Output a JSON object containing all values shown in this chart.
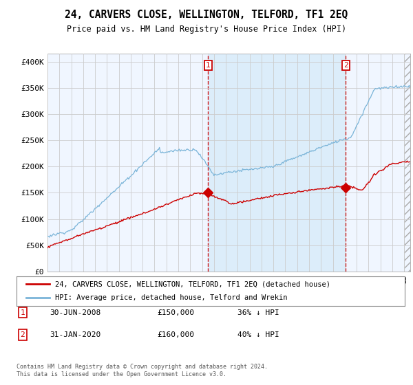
{
  "title": "24, CARVERS CLOSE, WELLINGTON, TELFORD, TF1 2EQ",
  "subtitle": "Price paid vs. HM Land Registry's House Price Index (HPI)",
  "ylabel_ticks": [
    "£0",
    "£50K",
    "£100K",
    "£150K",
    "£200K",
    "£250K",
    "£300K",
    "£350K",
    "£400K"
  ],
  "ytick_values": [
    0,
    50000,
    100000,
    150000,
    200000,
    250000,
    300000,
    350000,
    400000
  ],
  "ylim": [
    0,
    415000
  ],
  "xlim_start": 1995.0,
  "xlim_end": 2025.5,
  "transaction1_x": 2008.5,
  "transaction1_y": 150000,
  "transaction1_label": "30-JUN-2008",
  "transaction1_price": "£150,000",
  "transaction1_hpi": "36% ↓ HPI",
  "transaction2_x": 2020.083,
  "transaction2_y": 160000,
  "transaction2_label": "31-JAN-2020",
  "transaction2_price": "£160,000",
  "transaction2_hpi": "40% ↓ HPI",
  "hpi_color": "#7ab4d8",
  "price_color": "#cc0000",
  "vline_color": "#cc0000",
  "bg_color": "#ffffff",
  "plot_bg": "#ffffff",
  "shade_color": "#ddeeff",
  "legend_label_price": "24, CARVERS CLOSE, WELLINGTON, TELFORD, TF1 2EQ (detached house)",
  "legend_label_hpi": "HPI: Average price, detached house, Telford and Wrekin",
  "footer": "Contains HM Land Registry data © Crown copyright and database right 2024.\nThis data is licensed under the Open Government Licence v3.0."
}
